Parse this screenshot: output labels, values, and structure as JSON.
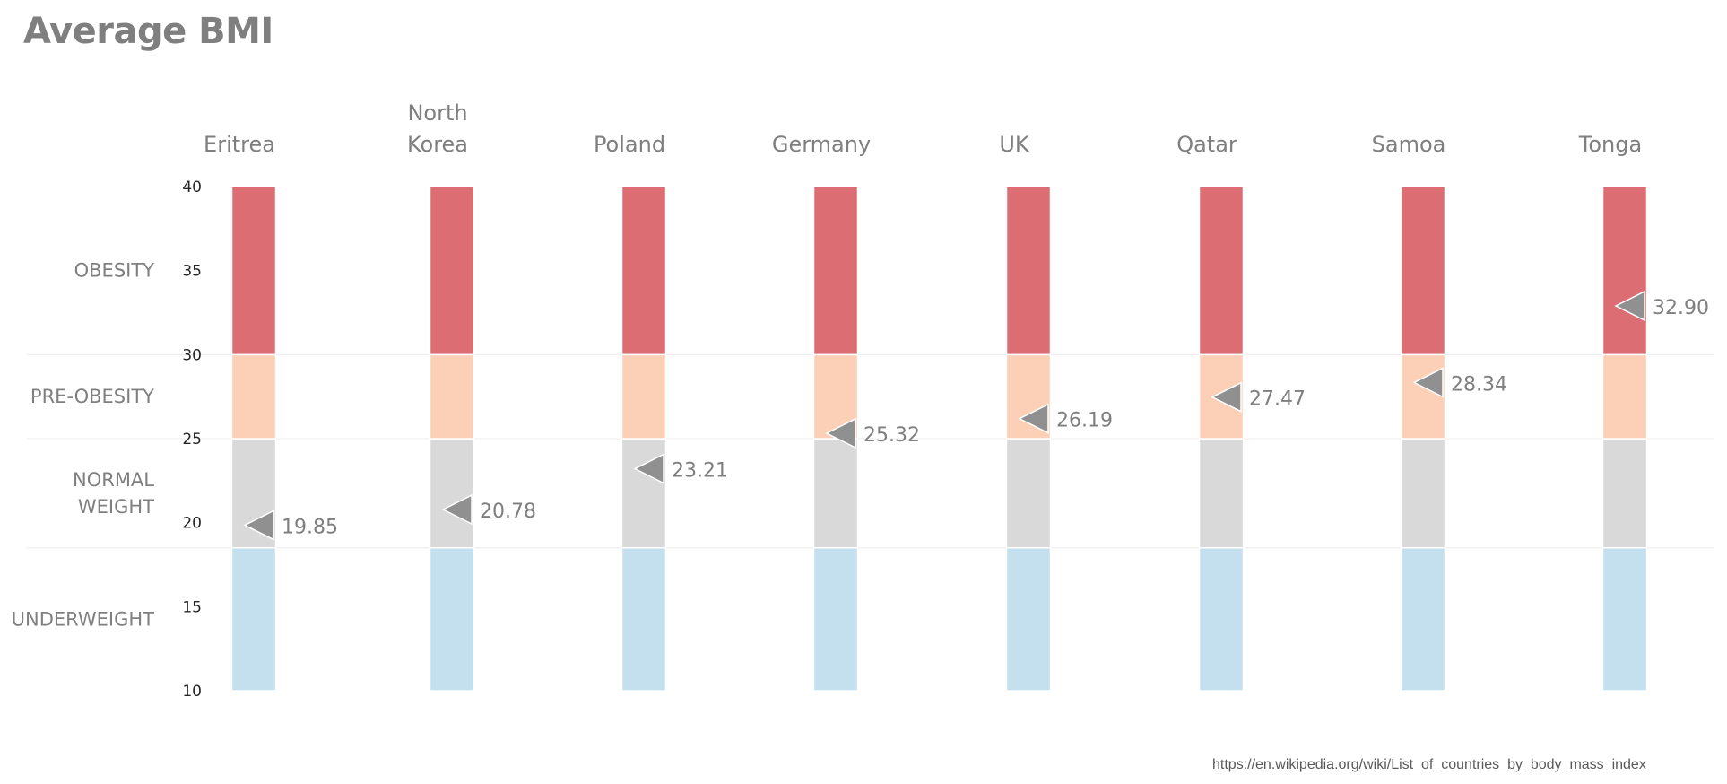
{
  "chart_data": {
    "type": "bar",
    "title": "Average BMI",
    "categories": [
      "Eritrea",
      "North Korea",
      "Poland",
      "Germany",
      "UK",
      "Qatar",
      "Samoa",
      "Tonga"
    ],
    "category_lines": [
      [
        "Eritrea"
      ],
      [
        "North",
        "Korea"
      ],
      [
        "Poland"
      ],
      [
        "Germany"
      ],
      [
        "UK"
      ],
      [
        "Qatar"
      ],
      [
        "Samoa"
      ],
      [
        "Tonga"
      ]
    ],
    "values": [
      19.85,
      20.78,
      23.21,
      25.32,
      26.19,
      27.47,
      28.34,
      32.9
    ],
    "value_labels": [
      "19.85",
      "20.78",
      "23.21",
      "25.32",
      "26.19",
      "27.47",
      "28.34",
      "32.90"
    ],
    "ylim": [
      10,
      40
    ],
    "yticks": [
      10,
      15,
      20,
      25,
      30,
      35,
      40
    ],
    "bands": [
      {
        "name": "UNDERWEIGHT",
        "lines": [
          "UNDERWEIGHT"
        ],
        "from": 10,
        "to": 18.5,
        "color": "#c4dfee"
      },
      {
        "name": "NORMAL WEIGHT",
        "lines": [
          "NORMAL",
          "WEIGHT"
        ],
        "from": 18.5,
        "to": 25,
        "color": "#d9d9d9"
      },
      {
        "name": "PRE-OBESITY",
        "lines": [
          "PRE-OBESITY"
        ],
        "from": 25,
        "to": 30,
        "color": "#fbd0b7"
      },
      {
        "name": "OBESITY",
        "lines": [
          "OBESITY"
        ],
        "from": 30,
        "to": 40,
        "color": "#dc6e73"
      }
    ],
    "marker_color": "#909090",
    "grid": false,
    "legend": "none"
  },
  "source": "https://en.wikipedia.org/wiki/List_of_countries_by_body_mass_index"
}
